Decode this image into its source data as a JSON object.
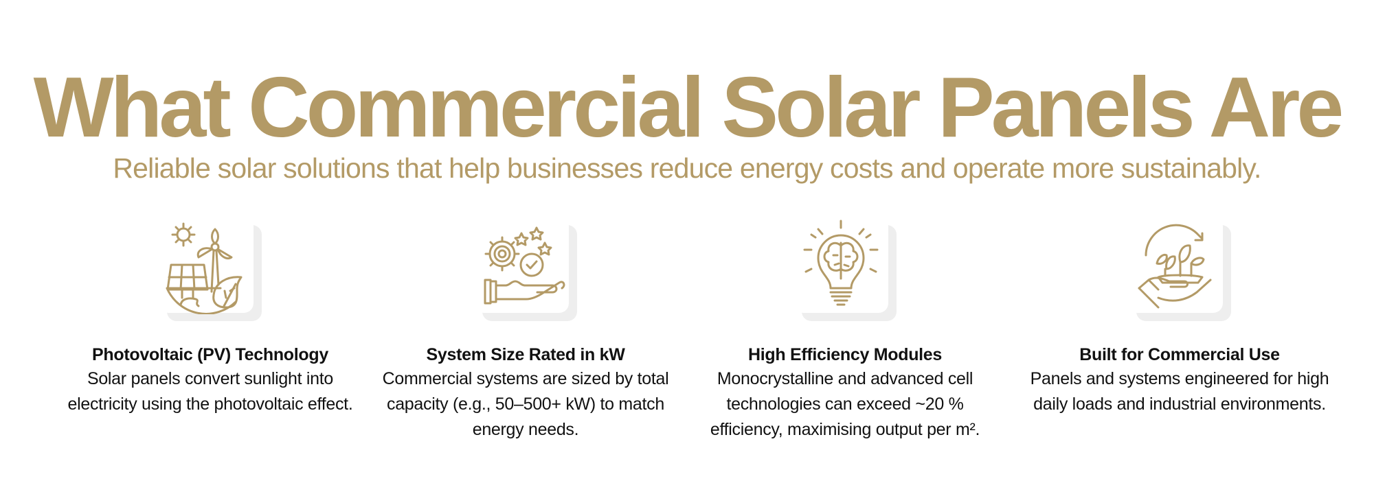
{
  "header": {
    "title": "What Commercial Solar Panels Are",
    "subtitle": "Reliable solar solutions that help businesses reduce energy costs and operate more sustainably."
  },
  "colors": {
    "accent": "#b39a66",
    "text": "#111111",
    "card_shadow": "#eeeeee"
  },
  "features": [
    {
      "icon": "solar-wind-leaf-icon",
      "title": "Photovoltaic (PV) Technology",
      "body": "Solar panels convert sunlight into electricity using the photovoltaic effect."
    },
    {
      "icon": "gear-hand-check-icon",
      "title": "System Size Rated in kW",
      "body": "Commercial systems are sized by total capacity (e.g., 50–500+ kW) to match energy needs."
    },
    {
      "icon": "lightbulb-brain-icon",
      "title": "High Efficiency Modules",
      "body": "Monocrystalline and advanced cell technologies can exceed ~20 % efficiency, maximising output per m²."
    },
    {
      "icon": "hand-plant-icon",
      "title": "Built for Commercial Use",
      "body": "Panels and systems engineered for high daily loads and industrial environments."
    }
  ]
}
